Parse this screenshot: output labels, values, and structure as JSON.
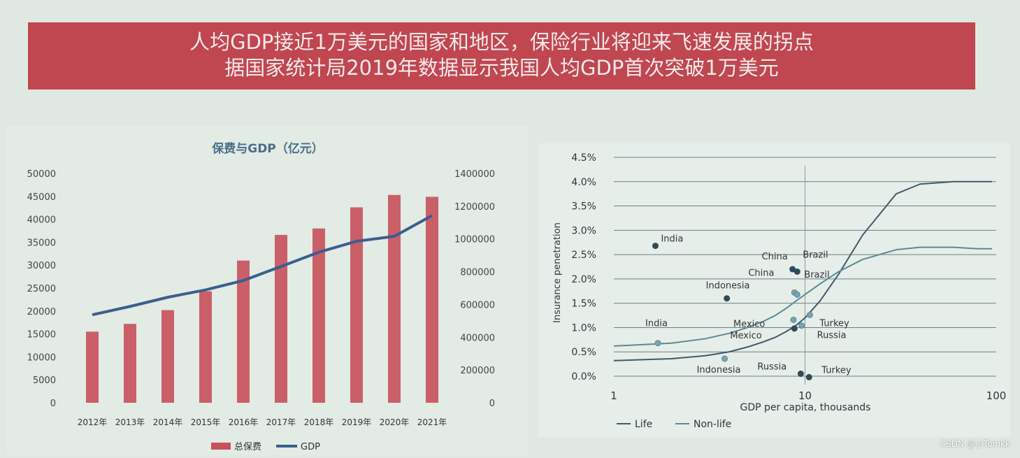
{
  "banner": {
    "line1": "人均GDP接近1万美元的国家和地区，保险行业将迎来飞速发展的拐点",
    "line2": "据国家统计局2019年数据显示我国人均GDP首次突破1万美元"
  },
  "watermark": "CSDN @小Tomkk",
  "chart_data": [
    {
      "type": "bar",
      "title": "保费与GDP（亿元）",
      "categories": [
        "2012年",
        "2013年",
        "2014年",
        "2015年",
        "2016年",
        "2017年",
        "2018年",
        "2019年",
        "2020年",
        "2021年"
      ],
      "series": [
        {
          "name": "总保费",
          "type": "bar",
          "axis": "left",
          "color": "#c9505a",
          "values": [
            15500,
            17200,
            20200,
            24300,
            31000,
            36600,
            38000,
            42600,
            45300,
            44900
          ]
        },
        {
          "name": "GDP",
          "type": "line",
          "axis": "right",
          "color": "#3b5e8e",
          "values": [
            537000,
            588000,
            644000,
            689000,
            746000,
            832000,
            919000,
            986000,
            1016000,
            1143000
          ]
        }
      ],
      "ylim_left": [
        0,
        50000
      ],
      "yticks_left": [
        "0",
        "5000",
        "10000",
        "15000",
        "20000",
        "25000",
        "30000",
        "35000",
        "40000",
        "45000",
        "50000"
      ],
      "ylim_right": [
        0,
        1400000
      ],
      "yticks_right": [
        "0",
        "200000",
        "400000",
        "600000",
        "800000",
        "1000000",
        "1200000",
        "1400000"
      ],
      "legend_position": "bottom"
    },
    {
      "type": "line",
      "xlabel": "GDP per capita, thousands",
      "ylabel": "Insurance penetration",
      "x_scale": "log",
      "xlim": [
        1,
        100
      ],
      "xticks": [
        "1",
        "10",
        "100"
      ],
      "ylim": [
        0,
        4.5
      ],
      "yticks": [
        "0.0%",
        "0.5%",
        "1.0%",
        "1.5%",
        "2.0%",
        "2.5%",
        "3.0%",
        "3.5%",
        "4.0%",
        "4.5%"
      ],
      "grid": true,
      "series": [
        {
          "name": "Life",
          "color": "#3e5a6b",
          "x": [
            1,
            2,
            3,
            4,
            5,
            6,
            7,
            8,
            9,
            10,
            12,
            15,
            20,
            30,
            40,
            60,
            80,
            95
          ],
          "y": [
            0.32,
            0.36,
            0.42,
            0.5,
            0.6,
            0.7,
            0.8,
            0.92,
            1.05,
            1.2,
            1.55,
            2.1,
            2.9,
            3.75,
            3.95,
            4.0,
            4.0,
            4.0
          ]
        },
        {
          "name": "Non-life",
          "color": "#5a8a94",
          "x": [
            1,
            2,
            3,
            4,
            5,
            6,
            7,
            8,
            9,
            10,
            12,
            15,
            20,
            30,
            40,
            60,
            80,
            95
          ],
          "y": [
            0.62,
            0.68,
            0.77,
            0.88,
            1.0,
            1.12,
            1.25,
            1.4,
            1.55,
            1.68,
            1.9,
            2.15,
            2.4,
            2.6,
            2.65,
            2.65,
            2.62,
            2.62
          ]
        }
      ],
      "points": [
        {
          "label": "India",
          "group": "life",
          "x": 1.65,
          "y": 2.68
        },
        {
          "label": "Indonesia",
          "group": "life",
          "x": 3.9,
          "y": 1.6
        },
        {
          "label": "China",
          "group": "life",
          "x": 8.6,
          "y": 2.2
        },
        {
          "label": "Brazil",
          "group": "life",
          "x": 9.1,
          "y": 2.15
        },
        {
          "label": "Mexico",
          "group": "life",
          "x": 8.8,
          "y": 0.98
        },
        {
          "label": "Russia",
          "group": "life",
          "x": 9.5,
          "y": 0.05
        },
        {
          "label": "Turkey",
          "group": "life",
          "x": 10.5,
          "y": -0.02
        },
        {
          "label": "India",
          "group": "non-life",
          "x": 1.7,
          "y": 0.68
        },
        {
          "label": "Indonesia",
          "group": "non-life",
          "x": 3.8,
          "y": 0.36
        },
        {
          "label": "China",
          "group": "non-life",
          "x": 8.8,
          "y": 1.72
        },
        {
          "label": "Brazil",
          "group": "non-life",
          "x": 9.1,
          "y": 1.68
        },
        {
          "label": "Mexico",
          "group": "non-life",
          "x": 8.7,
          "y": 1.16
        },
        {
          "label": "Russia",
          "group": "non-life",
          "x": 9.6,
          "y": 1.04
        },
        {
          "label": "Turkey",
          "group": "non-life",
          "x": 10.6,
          "y": 1.26
        }
      ],
      "legend_position": "bottom-left"
    }
  ]
}
